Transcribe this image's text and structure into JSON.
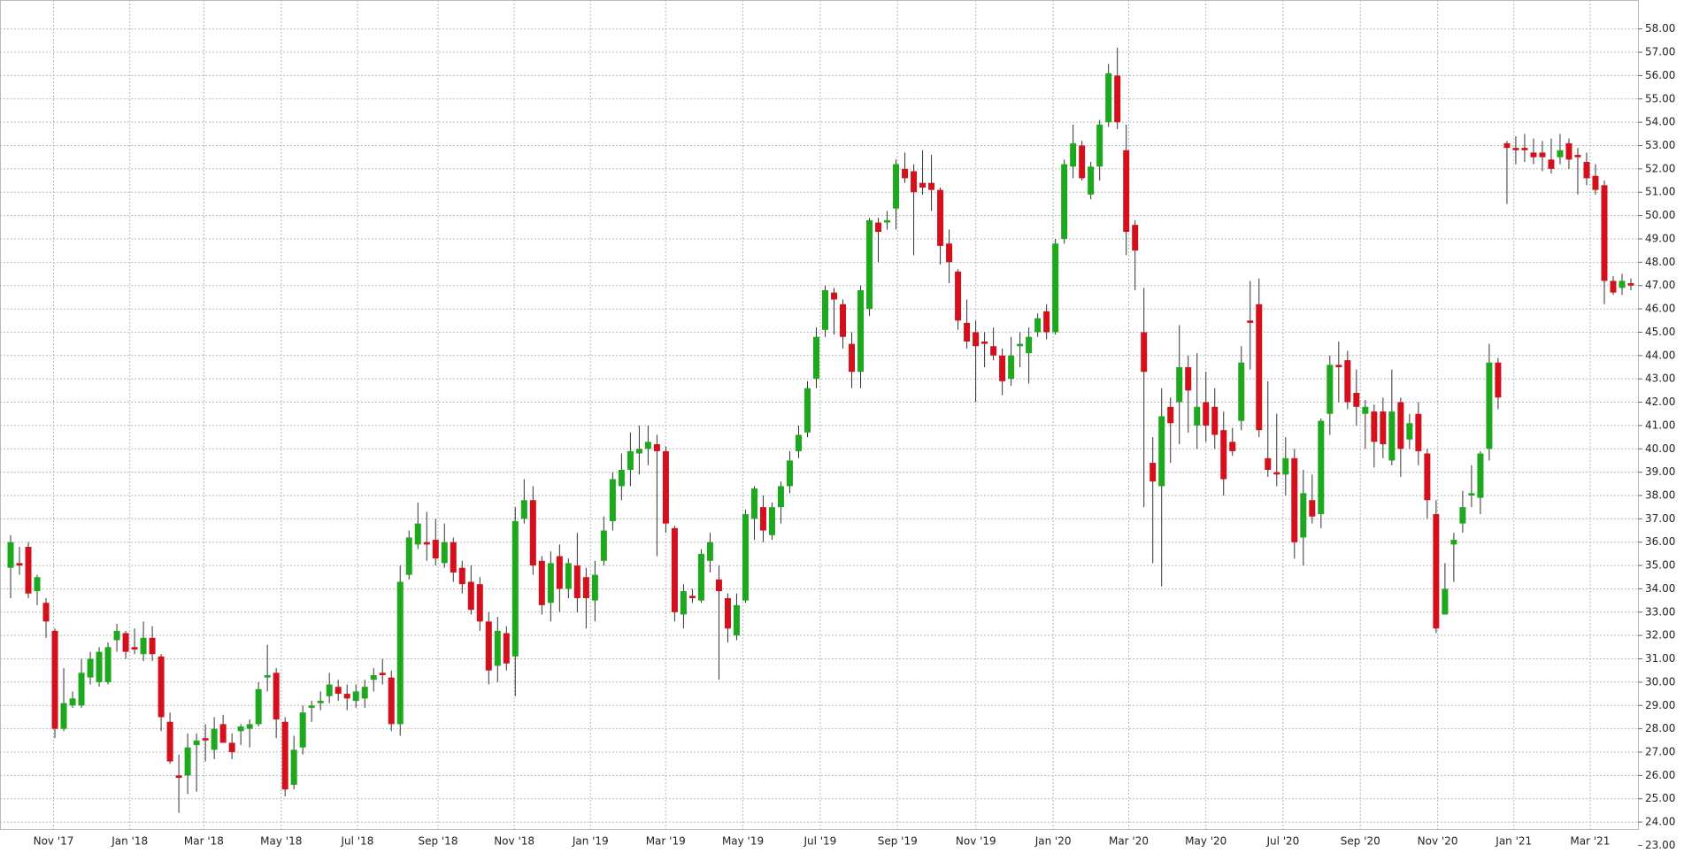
{
  "chart_data": {
    "type": "candlestick",
    "open": [
      34.9,
      35.1,
      35.8,
      33.9,
      33.4,
      32.2,
      28.0,
      29.0,
      29.0,
      30.2,
      30.0,
      30.0,
      31.8,
      32.1,
      31.5,
      31.2,
      31.9,
      31.1,
      28.3,
      26.0,
      26.0,
      27.3,
      27.6,
      27.1,
      28.2,
      27.4,
      27.9,
      28.0,
      28.2,
      30.2,
      30.4,
      28.3,
      25.6,
      27.2,
      28.9,
      29.1,
      29.4,
      29.8,
      29.5,
      29.2,
      29.3,
      30.1,
      30.4,
      30.2,
      28.2,
      34.6,
      35.9,
      36.0,
      36.1,
      35.1,
      36.0,
      34.9,
      34.3,
      34.2,
      32.6,
      30.7,
      32.1,
      31.1,
      37.0,
      37.8,
      35.2,
      33.4,
      35.4,
      34.0,
      35.0,
      34.5,
      33.5,
      35.2,
      36.9,
      38.4,
      39.1,
      39.8,
      40.0,
      40.2,
      39.9,
      36.6,
      32.9,
      33.7,
      33.5,
      35.2,
      34.4,
      33.6,
      32.0,
      33.5,
      37.0,
      37.5,
      36.3,
      37.5,
      38.4,
      39.9,
      40.7,
      43.0,
      45.1,
      46.7,
      46.2,
      44.5,
      43.3,
      46.0,
      49.7,
      49.7,
      50.3,
      52.0,
      51.9,
      51.4,
      51.4,
      51.1,
      48.8,
      47.6,
      45.4,
      45.0,
      44.6,
      44.4,
      44.0,
      43.0,
      44.4,
      44.1,
      45.0,
      45.9,
      45.0,
      49.0,
      52.1,
      53.0,
      50.9,
      52.1,
      54.0,
      56.0,
      52.8,
      49.6,
      45.0,
      39.4,
      38.4,
      41.8,
      42.0,
      43.5,
      41.0,
      42.0,
      41.8,
      40.8,
      40.3,
      41.2,
      45.5,
      46.2,
      39.6,
      39.0,
      38.9,
      39.6,
      36.2,
      37.8,
      37.2,
      41.5,
      43.6,
      43.8,
      42.4,
      41.5,
      41.6,
      41.6,
      39.5,
      42.0,
      40.4,
      41.5,
      39.8,
      37.2,
      32.9,
      35.9,
      36.8,
      38.0,
      37.9,
      40.0,
      43.7,
      53.1,
      52.9,
      52.9,
      52.7,
      52.7,
      52.4,
      52.5,
      53.1,
      52.6,
      52.3,
      51.7,
      51.3,
      47.2,
      46.9,
      47.1
    ],
    "high": [
      36.3,
      35.8,
      36.0,
      34.6,
      33.6,
      32.3,
      30.6,
      29.6,
      31.0,
      31.3,
      31.5,
      31.7,
      32.5,
      32.2,
      32.3,
      32.6,
      32.4,
      31.2,
      28.7,
      26.9,
      27.8,
      27.8,
      28.2,
      28.5,
      28.6,
      27.8,
      28.2,
      28.4,
      30.0,
      31.6,
      30.6,
      28.5,
      27.7,
      29.0,
      29.2,
      29.6,
      30.4,
      30.1,
      29.9,
      29.9,
      30.1,
      30.6,
      31.0,
      30.5,
      35.0,
      36.5,
      37.7,
      37.3,
      37.0,
      36.8,
      36.2,
      35.2,
      35.0,
      34.5,
      33.0,
      32.8,
      32.4,
      37.5,
      38.7,
      38.4,
      35.4,
      35.6,
      35.9,
      35.3,
      36.4,
      34.9,
      35.2,
      37.1,
      39.0,
      39.8,
      40.7,
      41.0,
      41.0,
      40.6,
      40.1,
      36.7,
      34.2,
      34.0,
      35.7,
      36.4,
      35.0,
      33.8,
      33.8,
      37.4,
      38.4,
      38.0,
      37.7,
      38.6,
      39.9,
      41.0,
      42.9,
      45.2,
      47.0,
      46.9,
      46.4,
      45.0,
      47.0,
      49.9,
      49.9,
      50.2,
      52.4,
      52.7,
      52.2,
      52.8,
      52.6,
      51.2,
      49.4,
      47.7,
      46.4,
      45.5,
      45.0,
      45.2,
      44.3,
      44.8,
      45.0,
      45.2,
      45.8,
      46.2,
      49.0,
      52.4,
      53.9,
      53.2,
      52.3,
      54.1,
      56.5,
      57.2,
      53.9,
      49.8,
      46.9,
      40.5,
      42.6,
      42.2,
      45.3,
      44.0,
      44.1,
      43.3,
      42.6,
      41.6,
      40.9,
      44.4,
      47.2,
      47.3,
      42.9,
      41.5,
      40.5,
      40.0,
      39.1,
      38.9,
      41.3,
      44.0,
      44.6,
      44.2,
      43.4,
      42.1,
      41.9,
      42.2,
      43.4,
      42.2,
      41.5,
      42.0,
      40.0,
      37.8,
      35.1,
      36.4,
      38.2,
      39.3,
      39.9,
      44.5,
      43.9,
      53.2,
      53.4,
      53.5,
      53.3,
      53.2,
      53.3,
      53.5,
      53.3,
      52.9,
      52.7,
      52.2,
      51.5,
      47.4,
      47.5,
      47.3
    ],
    "low": [
      33.6,
      34.6,
      33.6,
      33.3,
      31.9,
      27.6,
      27.9,
      28.9,
      28.9,
      29.9,
      29.8,
      29.9,
      31.3,
      31.0,
      31.2,
      30.9,
      30.9,
      27.9,
      26.5,
      24.4,
      25.2,
      25.3,
      26.6,
      26.7,
      27.4,
      26.7,
      27.3,
      27.2,
      28.1,
      29.6,
      27.6,
      25.1,
      25.4,
      26.9,
      28.3,
      28.8,
      29.1,
      29.2,
      28.8,
      28.9,
      28.9,
      29.6,
      29.9,
      27.9,
      27.7,
      34.4,
      35.7,
      35.2,
      35.0,
      34.9,
      34.3,
      33.8,
      32.9,
      32.2,
      29.9,
      30.0,
      30.5,
      29.4,
      36.8,
      34.6,
      32.9,
      32.6,
      33.0,
      33.6,
      33.0,
      32.3,
      32.6,
      35.0,
      36.5,
      37.8,
      38.4,
      38.9,
      39.3,
      35.4,
      36.4,
      32.6,
      32.3,
      33.4,
      33.4,
      34.7,
      30.1,
      31.7,
      31.8,
      33.4,
      36.1,
      36.0,
      36.1,
      36.8,
      38.1,
      39.6,
      40.5,
      42.6,
      44.8,
      44.9,
      44.3,
      42.6,
      42.6,
      45.7,
      48.0,
      49.4,
      49.4,
      51.4,
      48.3,
      50.9,
      50.2,
      47.9,
      47.1,
      45.1,
      44.3,
      42.0,
      43.5,
      43.8,
      42.3,
      42.7,
      43.5,
      42.8,
      44.8,
      44.7,
      44.9,
      48.8,
      51.6,
      51.5,
      50.7,
      51.5,
      53.8,
      53.7,
      48.3,
      46.8,
      37.5,
      35.1,
      34.1,
      39.4,
      40.2,
      40.7,
      40.0,
      40.3,
      40.0,
      38.0,
      39.7,
      40.8,
      43.4,
      40.5,
      38.8,
      38.4,
      38.0,
      35.3,
      35.0,
      36.8,
      36.6,
      40.6,
      42.0,
      41.7,
      41.0,
      40.0,
      39.2,
      39.6,
      39.3,
      38.8,
      40.0,
      39.3,
      37.0,
      32.1,
      32.9,
      34.3,
      36.4,
      37.5,
      37.2,
      39.5,
      41.7,
      50.5,
      52.2,
      52.3,
      52.2,
      51.9,
      51.8,
      52.2,
      52.0,
      50.9,
      51.3,
      50.9,
      46.2,
      46.6,
      46.6,
      46.8
    ],
    "close": [
      36.0,
      35.0,
      33.8,
      34.5,
      32.6,
      28.0,
      29.1,
      29.3,
      30.4,
      31.0,
      31.3,
      31.5,
      32.2,
      31.3,
      31.4,
      31.9,
      31.2,
      28.5,
      26.6,
      25.9,
      27.2,
      27.5,
      27.5,
      28.0,
      27.4,
      27.0,
      28.1,
      28.2,
      29.7,
      30.3,
      28.4,
      25.4,
      27.1,
      28.7,
      29.0,
      29.2,
      29.9,
      29.5,
      29.3,
      29.6,
      29.8,
      30.3,
      30.3,
      28.2,
      34.3,
      36.2,
      36.8,
      35.9,
      35.3,
      36.0,
      34.7,
      34.2,
      33.1,
      32.6,
      30.5,
      32.2,
      30.8,
      36.9,
      37.8,
      35.0,
      33.3,
      35.1,
      34.0,
      35.1,
      33.6,
      33.6,
      34.6,
      36.5,
      38.7,
      39.1,
      39.9,
      40.0,
      40.3,
      39.9,
      36.8,
      33.0,
      33.9,
      33.6,
      35.5,
      36.0,
      33.9,
      32.3,
      33.3,
      37.2,
      38.3,
      36.5,
      37.5,
      38.4,
      39.5,
      40.6,
      42.6,
      44.8,
      46.8,
      46.4,
      44.8,
      43.3,
      46.8,
      49.8,
      49.3,
      49.8,
      52.2,
      51.6,
      51.0,
      51.2,
      51.1,
      48.7,
      48.0,
      45.5,
      44.6,
      44.4,
      44.5,
      44.0,
      42.9,
      44.0,
      44.5,
      44.8,
      45.6,
      45.0,
      48.8,
      52.2,
      53.1,
      51.6,
      52.1,
      53.9,
      56.1,
      54.0,
      49.3,
      48.5,
      43.3,
      38.6,
      41.4,
      41.1,
      43.5,
      42.5,
      41.8,
      41.0,
      40.6,
      38.7,
      39.9,
      43.7,
      45.4,
      40.8,
      39.1,
      38.9,
      39.6,
      36.0,
      38.1,
      37.1,
      41.2,
      43.6,
      43.5,
      42.0,
      41.8,
      41.8,
      40.3,
      40.2,
      41.6,
      40.0,
      41.1,
      39.9,
      37.8,
      32.3,
      34.0,
      36.1,
      37.5,
      38.1,
      39.8,
      43.7,
      42.2,
      52.9,
      52.8,
      52.8,
      52.5,
      52.5,
      52.0,
      52.8,
      52.4,
      52.5,
      51.6,
      51.1,
      47.2,
      46.7,
      47.2,
      47.0
    ],
    "up_color": "#1ea81e",
    "down_color": "#d4101c",
    "wick_color": "#333333",
    "ylim": [
      23.7,
      59.24
    ],
    "yticks": [
      {
        "value": 23,
        "label": "23.00"
      },
      {
        "value": 24,
        "label": "24.00"
      },
      {
        "value": 25,
        "label": "25.00"
      },
      {
        "value": 26,
        "label": "26.00"
      },
      {
        "value": 27,
        "label": "27.00"
      },
      {
        "value": 28,
        "label": "28.00"
      },
      {
        "value": 29,
        "label": "29.00"
      },
      {
        "value": 30,
        "label": "30.00"
      },
      {
        "value": 31,
        "label": "31.00"
      },
      {
        "value": 32,
        "label": "32.00"
      },
      {
        "value": 33,
        "label": "33.00"
      },
      {
        "value": 34,
        "label": "34.00"
      },
      {
        "value": 35,
        "label": "35.00"
      },
      {
        "value": 36,
        "label": "36.00"
      },
      {
        "value": 37,
        "label": "37.00"
      },
      {
        "value": 38,
        "label": "38.00"
      },
      {
        "value": 39,
        "label": "39.00"
      },
      {
        "value": 40,
        "label": "40.00"
      },
      {
        "value": 41,
        "label": "41.00"
      },
      {
        "value": 42,
        "label": "42.00"
      },
      {
        "value": 43,
        "label": "43.00"
      },
      {
        "value": 44,
        "label": "44.00"
      },
      {
        "value": 45,
        "label": "45.00"
      },
      {
        "value": 46,
        "label": "46.00"
      },
      {
        "value": 47,
        "label": "47.00"
      },
      {
        "value": 48,
        "label": "48.00"
      },
      {
        "value": 49,
        "label": "49.00"
      },
      {
        "value": 50,
        "label": "50.00"
      },
      {
        "value": 51,
        "label": "51.00"
      },
      {
        "value": 52,
        "label": "52.00"
      },
      {
        "value": 53,
        "label": "53.00"
      },
      {
        "value": 54,
        "label": "54.00"
      },
      {
        "value": 55,
        "label": "55.00"
      },
      {
        "value": 56,
        "label": "56.00"
      },
      {
        "value": 57,
        "label": "57.00"
      },
      {
        "value": 58,
        "label": "58.00"
      }
    ],
    "xlim": [
      0,
      183
    ],
    "xticks": [
      {
        "value": 4.85,
        "label": "Nov '17"
      },
      {
        "value": 13.46,
        "label": "Jan '18"
      },
      {
        "value": 21.83,
        "label": "Mar '18"
      },
      {
        "value": 30.56,
        "label": "May '18"
      },
      {
        "value": 39.17,
        "label": "Jul '18"
      },
      {
        "value": 48.27,
        "label": "Sep '18"
      },
      {
        "value": 56.88,
        "label": "Nov '18"
      },
      {
        "value": 65.49,
        "label": "Jan '19"
      },
      {
        "value": 73.98,
        "label": "Mar '19"
      },
      {
        "value": 82.71,
        "label": "May '19"
      },
      {
        "value": 91.44,
        "label": "Jul '19"
      },
      {
        "value": 100.17,
        "label": "Sep '19"
      },
      {
        "value": 109.02,
        "label": "Nov '19"
      },
      {
        "value": 117.75,
        "label": "Jan '20"
      },
      {
        "value": 126.28,
        "label": "Mar '20"
      },
      {
        "value": 135.0,
        "label": "May '20"
      },
      {
        "value": 143.71,
        "label": "Jul '20"
      },
      {
        "value": 152.44,
        "label": "Sep '20"
      },
      {
        "value": 161.17,
        "label": "Nov '20"
      },
      {
        "value": 169.78,
        "label": "Jan '21"
      },
      {
        "value": 178.39,
        "label": "Mar '21"
      }
    ],
    "grid": true
  }
}
